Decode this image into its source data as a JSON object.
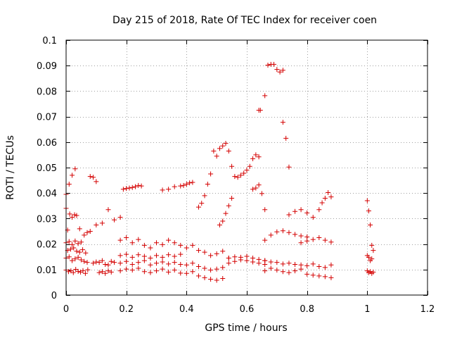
{
  "chart_data": {
    "type": "scatter",
    "title": "Day 215 of 2018, Rate Of TEC Index for receiver coen",
    "xlabel": "GPS time / hours",
    "ylabel": "ROTI / TECUs",
    "xlim": [
      0,
      1.2
    ],
    "ylim": [
      0,
      0.1
    ],
    "grid": true,
    "x_ticks": [
      0,
      0.2,
      0.4,
      0.6,
      0.8,
      1,
      1.2
    ],
    "x_tick_labels": [
      "0",
      "0.2",
      "0.4",
      "0.6",
      "0.8",
      "1",
      "1.2"
    ],
    "y_ticks": [
      0,
      0.01,
      0.02,
      0.03,
      0.04,
      0.05,
      0.06,
      0.07,
      0.08,
      0.09,
      0.1
    ],
    "y_tick_labels": [
      "0",
      "0.01",
      "0.02",
      "0.03",
      "0.04",
      "0.05",
      "0.06",
      "0.07",
      "0.08",
      "0.09",
      "0.1"
    ],
    "marker": "+",
    "color": "#d40000",
    "series": [
      {
        "name": "ROTI",
        "x": [
          0.0,
          0.008,
          0.016,
          0.024,
          0.032,
          0.04,
          0.048,
          0.056,
          0.064,
          0.072,
          0.0,
          0.01,
          0.02,
          0.03,
          0.04,
          0.05,
          0.06,
          0.07,
          0.005,
          0.015,
          0.025,
          0.035,
          0.045,
          0.055,
          0.065,
          0.0,
          0.01,
          0.02,
          0.03,
          0.04,
          0.05,
          0.0,
          0.005,
          0.012,
          0.02,
          0.028,
          0.035,
          0.045,
          0.06,
          0.07,
          0.08,
          0.0,
          0.01,
          0.02,
          0.03,
          0.08,
          0.09,
          0.1,
          0.11,
          0.12,
          0.13,
          0.14,
          0.15,
          0.09,
          0.1,
          0.11,
          0.12,
          0.13,
          0.14,
          0.15,
          0.16,
          0.1,
          0.12,
          0.14,
          0.16,
          0.18,
          0.18,
          0.2,
          0.22,
          0.24,
          0.26,
          0.28,
          0.3,
          0.32,
          0.34,
          0.36,
          0.38,
          0.18,
          0.2,
          0.22,
          0.24,
          0.26,
          0.28,
          0.3,
          0.32,
          0.34,
          0.36,
          0.38,
          0.18,
          0.2,
          0.22,
          0.24,
          0.26,
          0.28,
          0.3,
          0.32,
          0.34,
          0.36,
          0.38,
          0.18,
          0.2,
          0.22,
          0.24,
          0.26,
          0.28,
          0.3,
          0.32,
          0.34,
          0.36,
          0.38,
          0.19,
          0.2,
          0.21,
          0.22,
          0.23,
          0.24,
          0.25,
          0.32,
          0.34,
          0.36,
          0.38,
          0.39,
          0.4,
          0.41,
          0.42,
          0.4,
          0.42,
          0.44,
          0.46,
          0.48,
          0.5,
          0.52,
          0.4,
          0.42,
          0.44,
          0.46,
          0.48,
          0.5,
          0.52,
          0.4,
          0.42,
          0.44,
          0.46,
          0.48,
          0.5,
          0.52,
          0.54,
          0.44,
          0.45,
          0.46,
          0.47,
          0.48,
          0.49,
          0.5,
          0.51,
          0.52,
          0.53,
          0.54,
          0.55,
          0.51,
          0.52,
          0.53,
          0.54,
          0.55,
          0.54,
          0.56,
          0.58,
          0.6,
          0.62,
          0.64,
          0.66,
          0.54,
          0.56,
          0.58,
          0.6,
          0.62,
          0.64,
          0.66,
          0.56,
          0.57,
          0.58,
          0.59,
          0.6,
          0.61,
          0.62,
          0.63,
          0.64,
          0.62,
          0.63,
          0.64,
          0.65,
          0.66,
          0.64,
          0.645,
          0.66,
          0.67,
          0.68,
          0.69,
          0.7,
          0.71,
          0.72,
          0.72,
          0.73,
          0.74,
          0.66,
          0.68,
          0.7,
          0.72,
          0.74,
          0.76,
          0.78,
          0.66,
          0.68,
          0.7,
          0.72,
          0.74,
          0.76,
          0.78,
          0.66,
          0.68,
          0.7,
          0.72,
          0.74,
          0.76,
          0.78,
          0.8,
          0.74,
          0.76,
          0.78,
          0.8,
          0.82,
          0.78,
          0.8,
          0.82,
          0.84,
          0.86,
          0.88,
          0.8,
          0.82,
          0.84,
          0.86,
          0.88,
          0.8,
          0.82,
          0.84,
          0.86,
          0.88,
          0.84,
          0.85,
          0.86,
          0.87,
          0.88,
          1.0,
          1.005,
          1.01,
          1.015,
          1.02,
          1.0,
          1.005,
          1.01,
          1.015,
          1.02,
          1.0,
          1.005,
          1.01,
          1.015
        ],
        "y": [
          0.0098,
          0.0092,
          0.0095,
          0.0088,
          0.0101,
          0.0093,
          0.009,
          0.0096,
          0.0085,
          0.0099,
          0.0145,
          0.015,
          0.0135,
          0.0142,
          0.0148,
          0.0138,
          0.0132,
          0.0128,
          0.0175,
          0.018,
          0.0185,
          0.0172,
          0.0168,
          0.0178,
          0.0165,
          0.0205,
          0.021,
          0.0198,
          0.0212,
          0.0202,
          0.0208,
          0.034,
          0.0255,
          0.0318,
          0.0305,
          0.0315,
          0.0312,
          0.026,
          0.0235,
          0.0245,
          0.025,
          0.0395,
          0.0435,
          0.047,
          0.0495,
          0.0465,
          0.0462,
          0.0445,
          0.0088,
          0.0092,
          0.0085,
          0.0095,
          0.009,
          0.0125,
          0.013,
          0.0128,
          0.0135,
          0.012,
          0.0118,
          0.0132,
          0.0128,
          0.0275,
          0.0282,
          0.0335,
          0.0295,
          0.0305,
          0.0095,
          0.0102,
          0.0098,
          0.0105,
          0.0092,
          0.0088,
          0.0095,
          0.0102,
          0.009,
          0.0098,
          0.0086,
          0.0125,
          0.0132,
          0.012,
          0.0128,
          0.0135,
          0.0118,
          0.0125,
          0.013,
          0.0122,
          0.0128,
          0.012,
          0.0155,
          0.016,
          0.0148,
          0.0158,
          0.0152,
          0.0145,
          0.0155,
          0.0148,
          0.0158,
          0.0152,
          0.016,
          0.0215,
          0.0225,
          0.0205,
          0.0218,
          0.0195,
          0.0185,
          0.0205,
          0.0198,
          0.0215,
          0.0205,
          0.0195,
          0.0415,
          0.0418,
          0.042,
          0.0422,
          0.0425,
          0.043,
          0.0428,
          0.0412,
          0.0415,
          0.0425,
          0.0428,
          0.043,
          0.0435,
          0.044,
          0.0442,
          0.0085,
          0.0092,
          0.0075,
          0.0068,
          0.0062,
          0.0058,
          0.0065,
          0.0118,
          0.0125,
          0.0112,
          0.0105,
          0.0098,
          0.0102,
          0.0108,
          0.0185,
          0.0195,
          0.0175,
          0.0168,
          0.0155,
          0.0162,
          0.0172,
          0.0145,
          0.0345,
          0.036,
          0.039,
          0.0435,
          0.0475,
          0.0565,
          0.0545,
          0.0575,
          0.0585,
          0.0595,
          0.0565,
          0.0505,
          0.0275,
          0.029,
          0.032,
          0.035,
          0.038,
          0.0125,
          0.0132,
          0.0138,
          0.0135,
          0.013,
          0.0125,
          0.012,
          0.0145,
          0.015,
          0.0148,
          0.0152,
          0.0145,
          0.014,
          0.0135,
          0.0465,
          0.0462,
          0.047,
          0.0478,
          0.049,
          0.0505,
          0.0535,
          0.055,
          0.0542,
          0.0415,
          0.042,
          0.0432,
          0.0398,
          0.0335,
          0.0725,
          0.0725,
          0.0782,
          0.0902,
          0.0905,
          0.0905,
          0.0885,
          0.0875,
          0.0882,
          0.0678,
          0.0615,
          0.0502,
          0.0095,
          0.0105,
          0.0098,
          0.0092,
          0.0088,
          0.0095,
          0.0102,
          0.0135,
          0.013,
          0.0128,
          0.0122,
          0.0125,
          0.012,
          0.0118,
          0.0215,
          0.0235,
          0.0248,
          0.0252,
          0.0245,
          0.0238,
          0.0232,
          0.0228,
          0.0315,
          0.0328,
          0.0335,
          0.0322,
          0.0305,
          0.0205,
          0.0212,
          0.0218,
          0.0225,
          0.0215,
          0.0208,
          0.0115,
          0.0122,
          0.0112,
          0.0108,
          0.0118,
          0.0082,
          0.0078,
          0.0075,
          0.0072,
          0.0068,
          0.0335,
          0.0362,
          0.038,
          0.0402,
          0.0385,
          0.0095,
          0.0088,
          0.0092,
          0.0085,
          0.009,
          0.0155,
          0.0148,
          0.0135,
          0.0142,
          0.0175,
          0.037,
          0.033,
          0.0275,
          0.0195
        ]
      }
    ]
  }
}
